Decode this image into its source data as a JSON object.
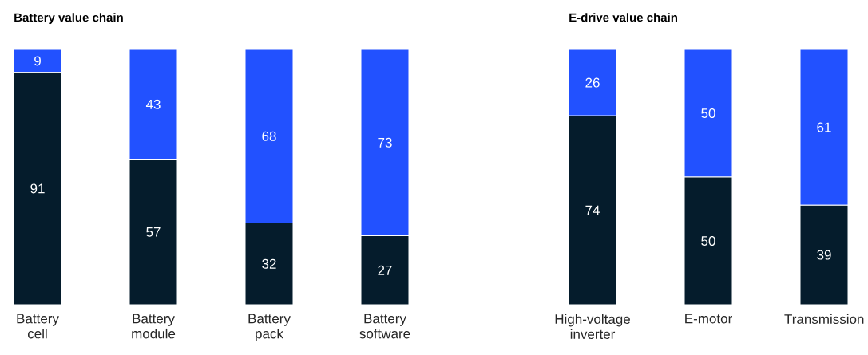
{
  "chart_data": [
    {
      "type": "bar",
      "title": "Battery value chain",
      "stacked": true,
      "tick_labels": "x",
      "ylim": [
        0,
        100
      ],
      "categories": [
        "Battery cell",
        "Battery module",
        "Battery pack",
        "Battery software"
      ],
      "series": [
        {
          "color": "#051c2c",
          "values": [
            91,
            57,
            32,
            27
          ],
          "value_labels": [
            "91",
            "57",
            "32",
            "27"
          ]
        },
        {
          "color": "#2251ff",
          "values": [
            9,
            43,
            68,
            73
          ],
          "value_labels": [
            "9",
            "43",
            "68",
            "73"
          ]
        }
      ]
    },
    {
      "type": "bar",
      "title": "E-drive value chain",
      "stacked": true,
      "tick_labels": "x",
      "ylim": [
        0,
        100
      ],
      "categories": [
        "High-voltage inverter",
        "E-motor",
        "Transmission"
      ],
      "series": [
        {
          "color": "#051c2c",
          "values": [
            74,
            50,
            39
          ],
          "value_labels": [
            "74",
            "50",
            "39"
          ]
        },
        {
          "color": "#2251ff",
          "values": [
            26,
            50,
            61
          ],
          "value_labels": [
            "26",
            "50",
            "61"
          ]
        }
      ]
    }
  ]
}
